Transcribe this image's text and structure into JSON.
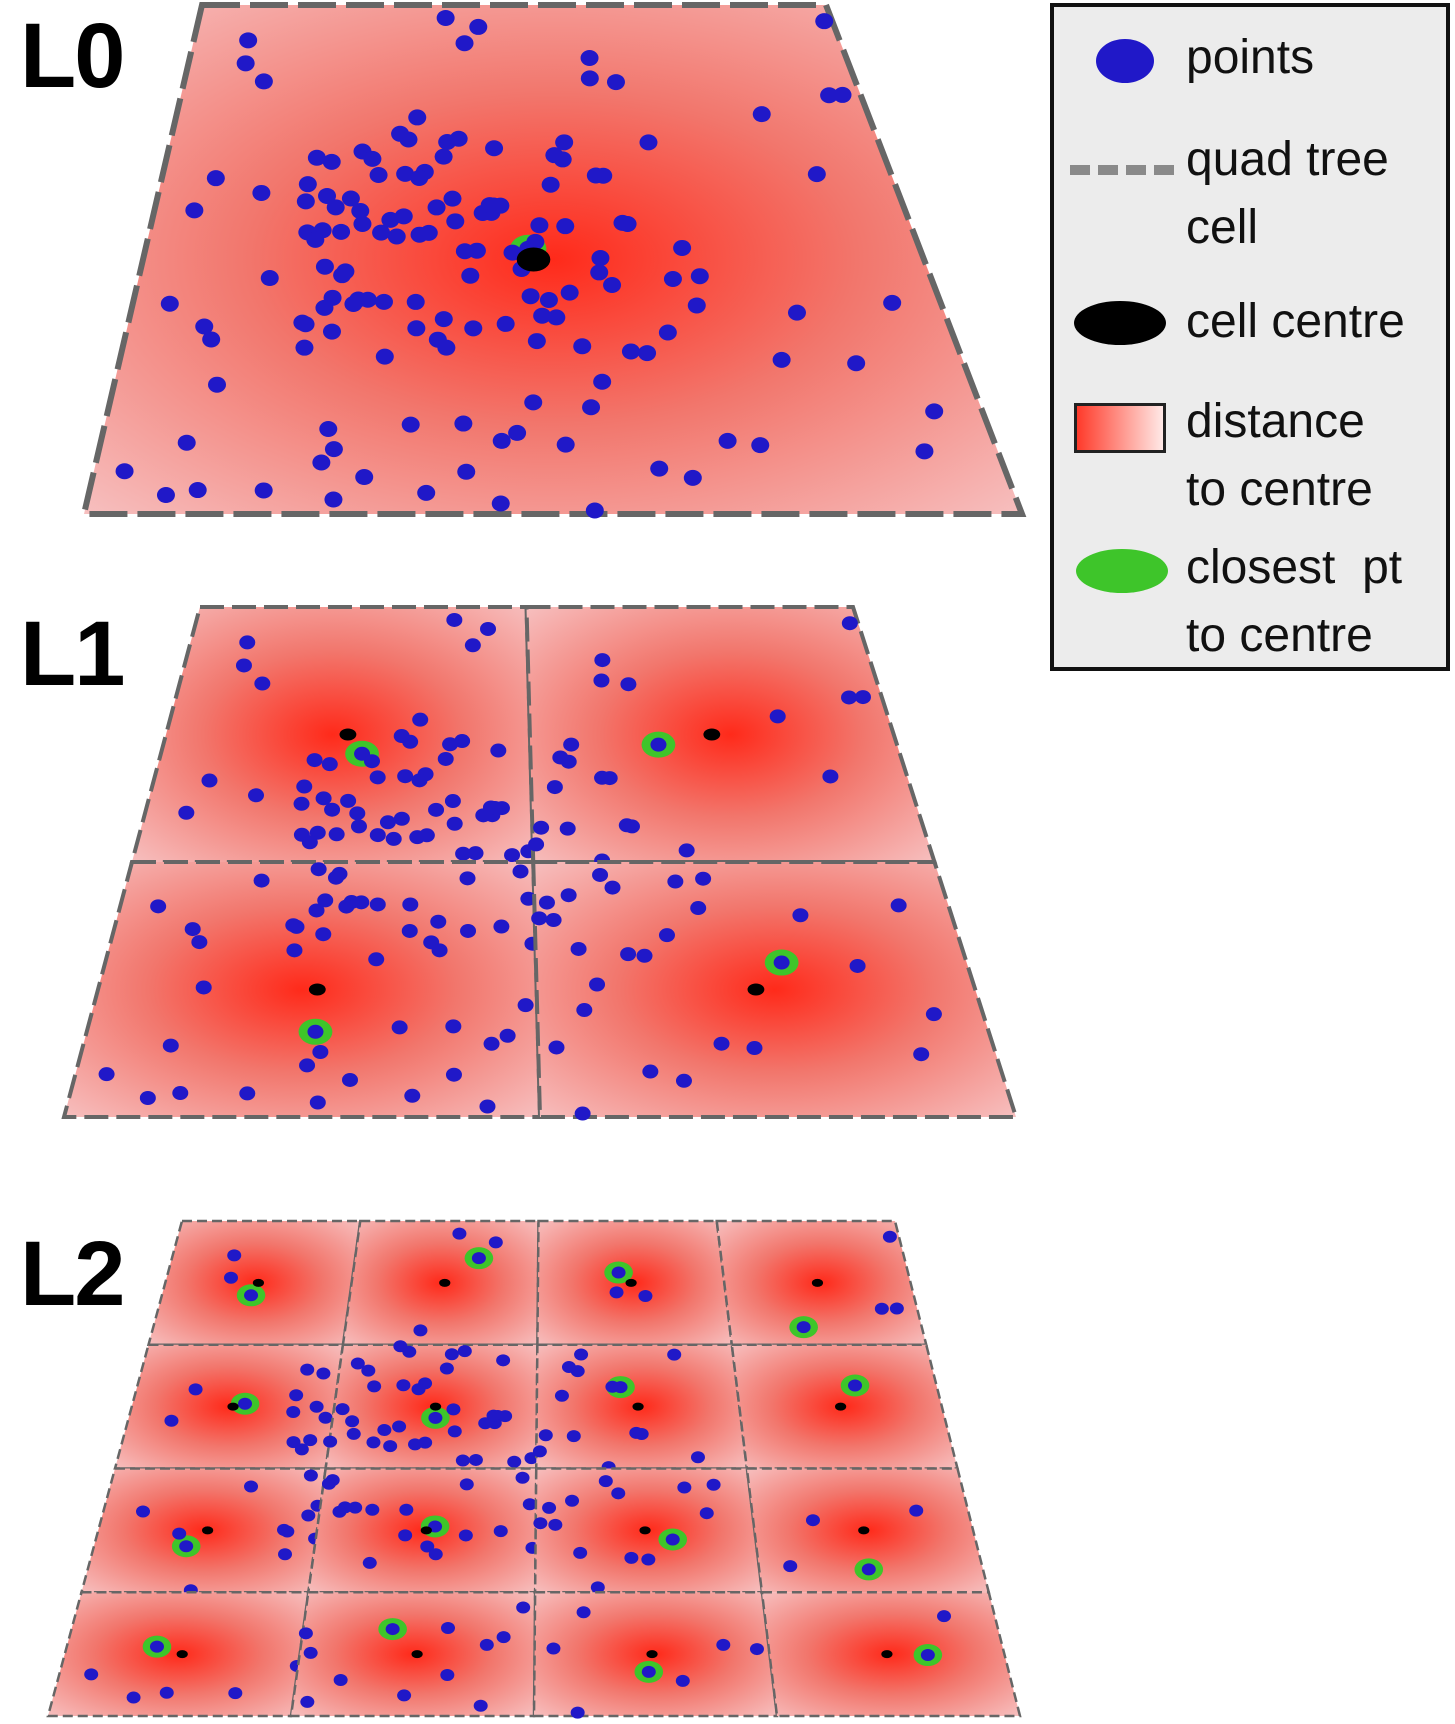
{
  "levels": [
    {
      "label": "L0"
    },
    {
      "label": "L1"
    },
    {
      "label": "L2"
    }
  ],
  "legend": {
    "points": "points",
    "quad_tree_cell_line1": "quad tree",
    "quad_tree_cell_line2": "cell",
    "cell_centre": "cell centre",
    "distance_line1": "distance",
    "distance_line2": "to centre",
    "closest_line1": "closest  pt",
    "closest_line2": "to centre"
  },
  "colors": {
    "point": "#2018c8",
    "cell_centre": "#000000",
    "closest": "#3ec52a",
    "distance_near": "#ff2a1a",
    "distance_far": "#f7c2c2",
    "cell_border": "#666666"
  }
}
